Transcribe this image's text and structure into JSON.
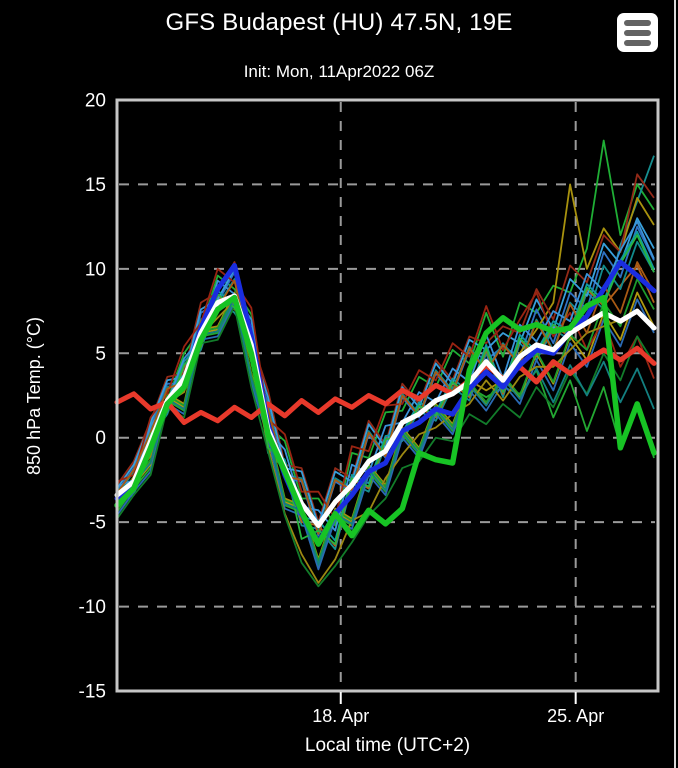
{
  "window": {
    "background": "#000000",
    "right_edge_color": "#d9d9d9"
  },
  "header": {
    "title": "GFS Budapest (HU) 47.5N, 19E",
    "subtitle": "Init: Mon, 11Apr2022 06Z",
    "menu_icon": "hamburger-menu"
  },
  "chart_data": {
    "type": "line",
    "title": "GFS Budapest (HU) 47.5N, 19E",
    "subtitle": "Init: Mon, 11Apr2022 06Z",
    "xlabel": "Local time (UTC+2)",
    "ylabel": "850 hPa Temp. (°C)",
    "ylim": [
      -15,
      20
    ],
    "yticks": [
      20,
      15,
      10,
      5,
      0,
      -5,
      -10,
      -15
    ],
    "x_start": "Mon 11 Apr 2022 08:00 local",
    "x_step_hours": 12,
    "x_points": 33,
    "x_ticks": [
      {
        "pos": 13.333,
        "label": "18. Apr"
      },
      {
        "pos": 27.333,
        "label": "25. Apr"
      }
    ],
    "grid": "dashed",
    "legend_position": "none",
    "axis_color": "#c6c6c6",
    "grid_color": "#9a9a9a",
    "tick_color": "#ffffff",
    "text_color": "#ffffff",
    "main_series": [
      {
        "name": "thick-red",
        "color": "#e8392b",
        "width": 5,
        "values": [
          2.1,
          2.6,
          1.7,
          2.1,
          0.9,
          1.5,
          1.0,
          1.8,
          1.2,
          2.0,
          1.3,
          2.2,
          1.5,
          2.3,
          1.8,
          2.5,
          2.0,
          2.8,
          2.3,
          3.1,
          2.6,
          3.4,
          4.3,
          3.5,
          4.2,
          3.3,
          4.5,
          3.8,
          4.6,
          5.2,
          4.6,
          5.3,
          4.4
        ]
      },
      {
        "name": "thick-blue",
        "color": "#1a2de0",
        "width": 5,
        "values": [
          -3.6,
          -2.9,
          -0.4,
          2.0,
          3.2,
          6.5,
          8.8,
          10.2,
          6.0,
          0.8,
          -2.2,
          -4.5,
          -6.2,
          -4.5,
          -3.4,
          -2.0,
          -1.5,
          0.4,
          0.9,
          1.7,
          1.4,
          2.9,
          3.9,
          3.0,
          4.3,
          5.2,
          5.0,
          6.3,
          7.2,
          8.8,
          10.4,
          9.6,
          8.7
        ]
      },
      {
        "name": "thick-white",
        "color": "#ffffff",
        "width": 5,
        "values": [
          -3.4,
          -2.6,
          -0.2,
          2.2,
          3.5,
          6.2,
          8.0,
          8.4,
          5.5,
          0.5,
          -1.8,
          -3.9,
          -5.2,
          -3.8,
          -2.8,
          -1.4,
          -0.8,
          0.9,
          1.4,
          2.2,
          2.6,
          3.3,
          4.5,
          3.4,
          4.8,
          5.5,
          5.2,
          6.2,
          6.8,
          7.4,
          6.9,
          7.5,
          6.5
        ]
      },
      {
        "name": "thick-green",
        "color": "#17c324",
        "width": 5.5,
        "values": [
          -4.0,
          -3.0,
          -0.6,
          2.0,
          3.0,
          5.8,
          7.6,
          8.3,
          5.0,
          0.2,
          -2.0,
          -4.4,
          -6.3,
          -4.5,
          -5.8,
          -4.3,
          -5.1,
          -4.2,
          -0.9,
          -1.3,
          -1.5,
          4.0,
          6.2,
          7.1,
          6.4,
          6.7,
          6.3,
          6.5,
          7.8,
          8.3,
          -0.6,
          2.0,
          -0.9
        ]
      }
    ],
    "ensemble_members": [
      {
        "name": "member-01",
        "color": "#1fae35",
        "values": [
          -3.0,
          -2.6,
          0.8,
          2.2,
          5.0,
          6.4,
          9.6,
          8.8,
          7.3,
          0.7,
          -0.2,
          -3.6,
          -3.6,
          -5.2,
          -0.9,
          -1.2,
          1.5,
          1.6,
          3.6,
          3.0,
          5.2,
          4.4,
          7.4,
          4.8,
          8.0,
          7.4,
          9.0,
          8.6,
          11.2,
          17.6,
          12.0,
          15.0,
          13.5
        ]
      },
      {
        "name": "member-02",
        "color": "#168f90",
        "values": [
          -3.8,
          -3.4,
          0.0,
          1.4,
          4.0,
          5.2,
          8.2,
          7.4,
          5.9,
          -0.9,
          -1.8,
          -5.2,
          -5.4,
          -6.6,
          -2.7,
          -3.2,
          -0.4,
          -0.2,
          1.6,
          1.0,
          3.0,
          2.2,
          5.0,
          2.4,
          5.6,
          4.6,
          6.4,
          5.8,
          8.6,
          7.6,
          11.4,
          14.0,
          16.7
        ]
      },
      {
        "name": "member-03",
        "color": "#2f72c4",
        "values": [
          -3.2,
          -1.8,
          0.6,
          3.2,
          3.2,
          7.4,
          8.0,
          9.8,
          5.2,
          2.0,
          -2.4,
          -2.6,
          -5.8,
          -2.6,
          -3.2,
          0.2,
          -1.2,
          2.4,
          1.2,
          3.8,
          2.6,
          5.2,
          4.6,
          5.4,
          4.8,
          7.6,
          5.6,
          8.6,
          7.6,
          11.0,
          9.5,
          12.5,
          10.5
        ]
      },
      {
        "name": "member-04",
        "color": "#a8920e",
        "values": [
          -4.0,
          -2.6,
          -1.4,
          2.6,
          2.0,
          6.4,
          6.6,
          8.6,
          3.8,
          0.6,
          -3.6,
          -4.0,
          -7.2,
          -4.2,
          -4.8,
          -1.6,
          -2.8,
          0.6,
          -0.6,
          2.0,
          0.8,
          3.4,
          2.8,
          3.4,
          5.0,
          6.4,
          8.0,
          15.0,
          10.0,
          12.4,
          11.0,
          14.2,
          12.6
        ]
      },
      {
        "name": "member-05",
        "color": "#932a18",
        "values": [
          -2.8,
          -1.4,
          1.0,
          3.6,
          3.8,
          8.0,
          8.6,
          10.4,
          5.8,
          2.8,
          -1.6,
          -1.8,
          -5.0,
          -1.8,
          -2.4,
          1.0,
          -0.4,
          3.2,
          2.0,
          4.6,
          3.4,
          6.0,
          5.6,
          6.6,
          6.2,
          8.8,
          7.0,
          10.2,
          9.2,
          12.0,
          11.0,
          15.6,
          14.2
        ]
      },
      {
        "name": "member-06",
        "color": "#b4611a",
        "values": [
          -3.6,
          -3.2,
          -0.2,
          1.6,
          4.2,
          5.4,
          8.4,
          7.6,
          6.1,
          -0.7,
          -1.6,
          -5.0,
          -5.2,
          -6.4,
          -2.5,
          -3.0,
          -0.2,
          0.0,
          1.8,
          1.2,
          3.2,
          2.4,
          5.2,
          2.6,
          5.8,
          4.8,
          6.6,
          6.0,
          8.8,
          7.8,
          9.0,
          10.2,
          8.0
        ]
      },
      {
        "name": "member-07",
        "color": "#23a832",
        "values": [
          -4.4,
          -3.0,
          -1.8,
          2.2,
          1.6,
          6.0,
          6.2,
          8.2,
          3.4,
          0.2,
          -4.0,
          -4.4,
          -7.6,
          -4.6,
          -5.2,
          -2.0,
          -3.2,
          0.2,
          -1.0,
          1.6,
          0.4,
          3.0,
          2.4,
          3.0,
          2.6,
          4.0,
          1.2,
          3.4,
          0.4,
          3.0,
          -0.5,
          2.0,
          -1.2
        ]
      },
      {
        "name": "member-08",
        "color": "#118a8c",
        "values": [
          -3.4,
          -2.0,
          0.4,
          3.0,
          3.4,
          7.0,
          7.8,
          9.4,
          5.0,
          1.8,
          -2.2,
          -2.4,
          -5.6,
          -2.4,
          -3.0,
          0.4,
          -1.0,
          2.6,
          1.4,
          4.0,
          2.8,
          5.4,
          4.0,
          5.6,
          4.4,
          7.0,
          5.2,
          8.0,
          7.0,
          10.2,
          8.8,
          11.6,
          9.8
        ]
      },
      {
        "name": "member-09",
        "color": "#38a0dc",
        "values": [
          -3.0,
          -1.6,
          0.9,
          3.4,
          3.6,
          7.6,
          8.2,
          10.0,
          5.6,
          2.4,
          -1.8,
          -2.0,
          -5.2,
          -2.0,
          -2.6,
          0.8,
          -0.6,
          3.0,
          1.8,
          4.4,
          3.2,
          5.8,
          5.2,
          6.2,
          5.6,
          8.2,
          6.4,
          9.4,
          8.4,
          11.5,
          10.3,
          13.0,
          11.2
        ]
      },
      {
        "name": "member-10",
        "color": "#b09a10",
        "values": [
          -4.2,
          -2.8,
          -1.6,
          2.4,
          1.8,
          6.2,
          6.4,
          8.4,
          3.6,
          0.4,
          -3.8,
          -4.2,
          -7.4,
          -4.4,
          -5.0,
          -1.8,
          -3.0,
          0.4,
          -0.8,
          1.8,
          0.6,
          3.2,
          2.0,
          3.6,
          2.4,
          5.0,
          3.2,
          6.0,
          4.6,
          7.4,
          5.8,
          8.6,
          6.6
        ]
      },
      {
        "name": "member-11",
        "color": "#9a2412",
        "values": [
          -2.6,
          -2.2,
          1.2,
          2.6,
          5.4,
          6.8,
          10.0,
          9.2,
          7.7,
          1.1,
          0.2,
          -3.2,
          -3.2,
          -4.8,
          -0.5,
          -0.8,
          1.9,
          2.0,
          4.0,
          3.4,
          5.6,
          4.8,
          7.8,
          5.2,
          7.0,
          8.6,
          6.0,
          7.4,
          5.2,
          7.0,
          4.2,
          6.0,
          3.5
        ]
      },
      {
        "name": "member-12",
        "color": "#1d9c2c",
        "values": [
          -3.9,
          -2.5,
          -1.3,
          2.5,
          1.9,
          6.3,
          6.5,
          8.5,
          3.7,
          0.5,
          -3.7,
          -4.1,
          -7.3,
          -4.3,
          -4.9,
          -1.7,
          -2.9,
          0.5,
          -0.7,
          1.9,
          0.7,
          3.3,
          2.1,
          3.7,
          2.5,
          5.1,
          3.3,
          6.1,
          5.2,
          8.0,
          6.6,
          9.4,
          7.6
        ]
      },
      {
        "name": "member-13",
        "color": "#0f9aa0",
        "values": [
          -3.1,
          -2.7,
          0.5,
          1.9,
          4.5,
          5.7,
          8.7,
          7.9,
          6.4,
          -0.4,
          -1.3,
          -4.7,
          -4.9,
          -6.1,
          -2.2,
          -2.7,
          0.1,
          0.3,
          2.1,
          1.5,
          3.5,
          2.7,
          5.5,
          2.9,
          6.1,
          5.1,
          6.9,
          6.3,
          9.1,
          8.1,
          10.5,
          12.2,
          10.0
        ]
      },
      {
        "name": "member-14",
        "color": "#2a6ab4",
        "values": [
          -4.6,
          -3.2,
          -2.0,
          2.0,
          1.4,
          5.8,
          6.0,
          8.0,
          3.2,
          0.0,
          -4.2,
          -4.6,
          -7.8,
          -4.8,
          -5.4,
          -2.2,
          -3.4,
          0.0,
          -1.2,
          1.4,
          0.2,
          2.8,
          1.6,
          3.2,
          2.0,
          4.6,
          2.8,
          5.6,
          4.2,
          7.0,
          5.4,
          8.2,
          6.2
        ]
      },
      {
        "name": "member-15",
        "color": "#9c8812",
        "values": [
          -3.7,
          -2.3,
          -1.1,
          2.1,
          2.7,
          6.1,
          7.1,
          8.1,
          4.5,
          -0.5,
          -4.5,
          -6.9,
          -8.6,
          -7.2,
          -4.9,
          -4.4,
          -2.4,
          -1.0,
          0.2,
          0.6,
          1.4,
          2.0,
          3.4,
          2.2,
          3.6,
          4.2,
          4.2,
          5.2,
          6.2,
          6.6,
          7.0,
          7.6,
          6.4
        ]
      },
      {
        "name": "member-16",
        "color": "#127c2a",
        "values": [
          -4.8,
          -3.4,
          -2.2,
          1.8,
          1.2,
          5.6,
          5.8,
          7.8,
          3.0,
          -0.8,
          -4.6,
          -7.4,
          -8.8,
          -7.6,
          -6.2,
          -4.6,
          -3.6,
          -1.8,
          -1.4,
          0.0,
          -0.2,
          1.4,
          0.8,
          2.0,
          1.2,
          3.0,
          1.8,
          4.0,
          2.6,
          5.0,
          3.4,
          6.0,
          4.4
        ]
      },
      {
        "name": "member-17",
        "color": "#3b93d8",
        "values": [
          -2.9,
          -2.5,
          0.7,
          2.1,
          4.7,
          5.9,
          9.3,
          8.5,
          7.0,
          0.4,
          -0.7,
          -4.1,
          -4.3,
          -5.5,
          -1.6,
          -2.1,
          0.7,
          0.9,
          2.7,
          2.1,
          4.1,
          3.3,
          6.1,
          3.5,
          6.7,
          5.7,
          7.5,
          6.9,
          9.7,
          8.7,
          11.1,
          12.8,
          10.6
        ]
      },
      {
        "name": "member-18",
        "color": "#a85a14",
        "values": [
          -3.3,
          -1.9,
          0.3,
          2.9,
          3.3,
          6.9,
          7.7,
          9.3,
          4.9,
          1.7,
          -2.3,
          -2.5,
          -5.7,
          -2.5,
          -3.1,
          0.3,
          -1.1,
          2.5,
          1.3,
          3.9,
          2.7,
          5.3,
          3.9,
          5.5,
          4.3,
          6.9,
          5.1,
          7.9,
          6.2,
          9.0,
          7.4,
          10.4,
          8.6
        ]
      },
      {
        "name": "member-19",
        "color": "#28b440",
        "values": [
          -3.5,
          -3.1,
          0.2,
          1.6,
          4.3,
          5.5,
          8.5,
          7.7,
          6.2,
          -0.6,
          -1.5,
          -6.0,
          -5.5,
          -6.3,
          -2.4,
          -2.9,
          -0.1,
          0.1,
          1.9,
          1.3,
          3.3,
          2.5,
          5.3,
          2.7,
          5.9,
          4.9,
          6.7,
          6.1,
          8.9,
          7.9,
          10.3,
          12.0,
          9.8
        ]
      },
      {
        "name": "member-20",
        "color": "#137f80",
        "values": [
          -4.1,
          -2.7,
          -1.5,
          2.3,
          1.7,
          6.1,
          6.3,
          8.3,
          3.5,
          0.3,
          -3.9,
          -4.3,
          -7.5,
          -4.5,
          -5.1,
          -1.9,
          -3.1,
          0.3,
          -0.9,
          1.7,
          0.5,
          3.1,
          1.9,
          3.5,
          2.3,
          4.1,
          2.1,
          4.3,
          2.5,
          4.5,
          2.1,
          4.1,
          1.7
        ]
      }
    ]
  }
}
